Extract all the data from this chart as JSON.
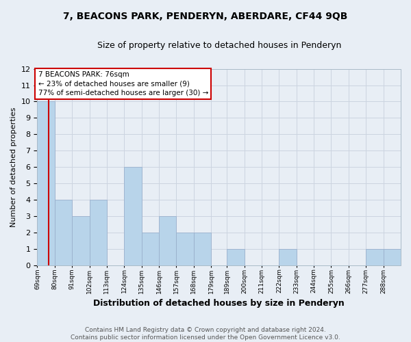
{
  "title": "7, BEACONS PARK, PENDERYN, ABERDARE, CF44 9QB",
  "subtitle": "Size of property relative to detached houses in Penderyn",
  "xlabel": "Distribution of detached houses by size in Penderyn",
  "ylabel": "Number of detached properties",
  "footer_line1": "Contains HM Land Registry data © Crown copyright and database right 2024.",
  "footer_line2": "Contains public sector information licensed under the Open Government Licence v3.0.",
  "annotation_title": "7 BEACONS PARK: 76sqm",
  "annotation_line1": "← 23% of detached houses are smaller (9)",
  "annotation_line2": "77% of semi-detached houses are larger (30) →",
  "property_line_x": 76,
  "categories": [
    "69sqm",
    "80sqm",
    "91sqm",
    "102sqm",
    "113sqm",
    "124sqm",
    "135sqm",
    "146sqm",
    "157sqm",
    "168sqm",
    "179sqm",
    "189sqm",
    "200sqm",
    "211sqm",
    "222sqm",
    "233sqm",
    "244sqm",
    "255sqm",
    "266sqm",
    "277sqm",
    "288sqm"
  ],
  "bin_edges": [
    69,
    80,
    91,
    102,
    113,
    124,
    135,
    146,
    157,
    168,
    179,
    189,
    200,
    211,
    222,
    233,
    244,
    255,
    266,
    277,
    288,
    299
  ],
  "values": [
    10,
    4,
    3,
    4,
    0,
    6,
    2,
    3,
    2,
    2,
    0,
    1,
    0,
    0,
    1,
    0,
    0,
    0,
    0,
    1,
    1
  ],
  "bar_color": "#b8d4ea",
  "bar_edge_color": "#9ab0cc",
  "highlight_line_color": "#cc0000",
  "grid_color": "#ccd4e0",
  "bg_color": "#e8eef5",
  "ylim": [
    0,
    12
  ],
  "yticks": [
    0,
    1,
    2,
    3,
    4,
    5,
    6,
    7,
    8,
    9,
    10,
    11,
    12
  ]
}
